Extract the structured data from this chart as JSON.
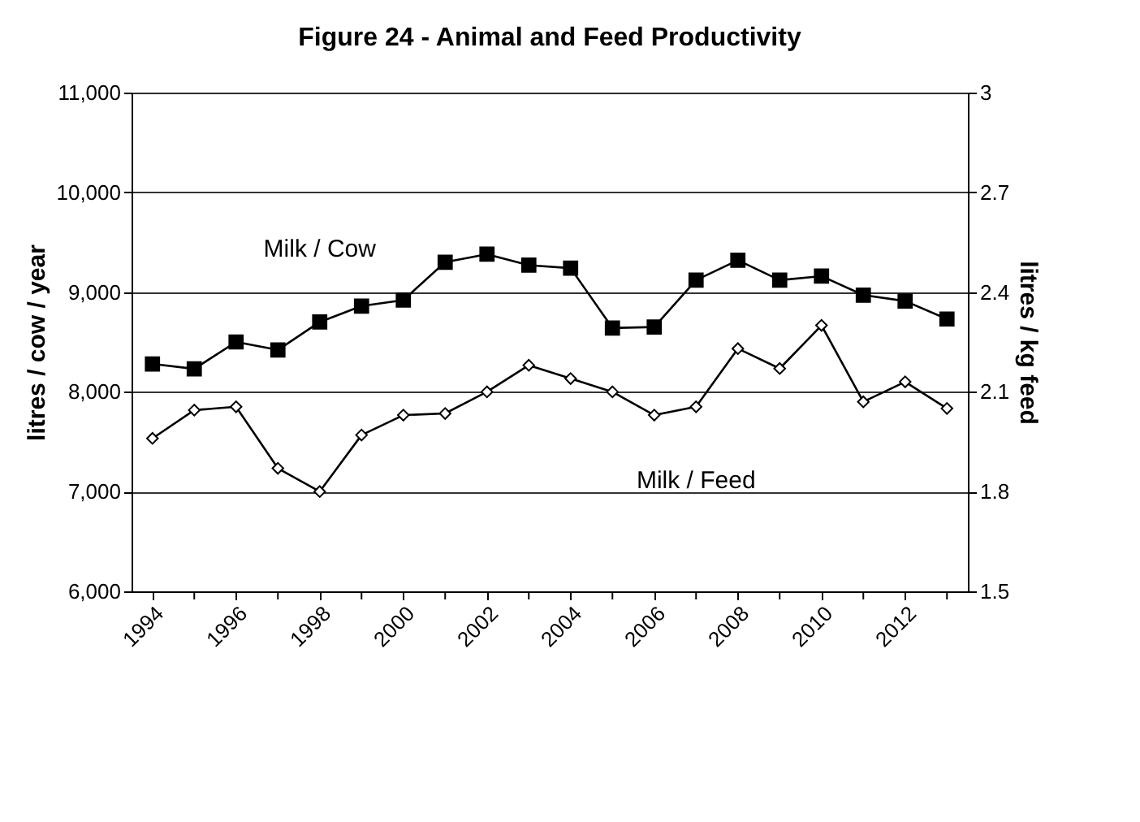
{
  "chart_data": {
    "type": "line",
    "title": "Figure 24 - Animal and Feed Productivity",
    "ylabel": "litres / cow / year",
    "y2label": "litres / kg feed",
    "x": [
      1994,
      1995,
      1996,
      1997,
      1998,
      1999,
      2000,
      2001,
      2002,
      2003,
      2004,
      2005,
      2006,
      2007,
      2008,
      2009,
      2010,
      2011,
      2012,
      2013
    ],
    "xlim": [
      1993.5,
      2013.5
    ],
    "xticks": [
      1994,
      {
        "value": 1995,
        "label": null
      },
      1996,
      {
        "value": 1997,
        "label": null
      },
      1998,
      {
        "value": 1999,
        "label": null
      },
      2000,
      {
        "value": 2001,
        "label": null
      },
      2002,
      {
        "value": 2003,
        "label": null
      },
      2004,
      {
        "value": 2005,
        "label": null
      },
      2006,
      {
        "value": 2007,
        "label": null
      },
      2008,
      {
        "value": 2009,
        "label": null
      },
      2010,
      {
        "value": 2011,
        "label": null
      },
      2012,
      {
        "value": 2013,
        "label": null
      }
    ],
    "ylim": [
      6000,
      11000
    ],
    "yticks": [
      {
        "value": 6000,
        "label": "6,000"
      },
      {
        "value": 7000,
        "label": "7,000"
      },
      {
        "value": 8000,
        "label": "8,000"
      },
      {
        "value": 9000,
        "label": "9,000"
      },
      {
        "value": 10000,
        "label": "10,000"
      },
      {
        "value": 11000,
        "label": "11,000"
      }
    ],
    "y2lim": [
      1.5,
      3
    ],
    "y2ticks": [
      1.5,
      1.8,
      2.1,
      2.4,
      2.7,
      3
    ],
    "grid": "y",
    "series": [
      {
        "name": "Milk / Cow",
        "color": "#000000",
        "marker": "square",
        "values": [
          8280,
          8230,
          8500,
          8420,
          8700,
          8860,
          8920,
          9300,
          9380,
          9270,
          9240,
          8640,
          8650,
          9120,
          9320,
          9120,
          9160,
          8970,
          8910,
          8730
        ]
      },
      {
        "name": "Milk / Feed",
        "color": "#000000",
        "marker": "diamond",
        "axis": "y2",
        "values": [
          1.96,
          2.045,
          2.055,
          1.87,
          1.8,
          1.97,
          2.03,
          2.035,
          2.1,
          2.18,
          2.14,
          2.1,
          2.03,
          2.055,
          2.23,
          2.17,
          2.3,
          2.07,
          2.13,
          2.05
        ]
      }
    ]
  }
}
